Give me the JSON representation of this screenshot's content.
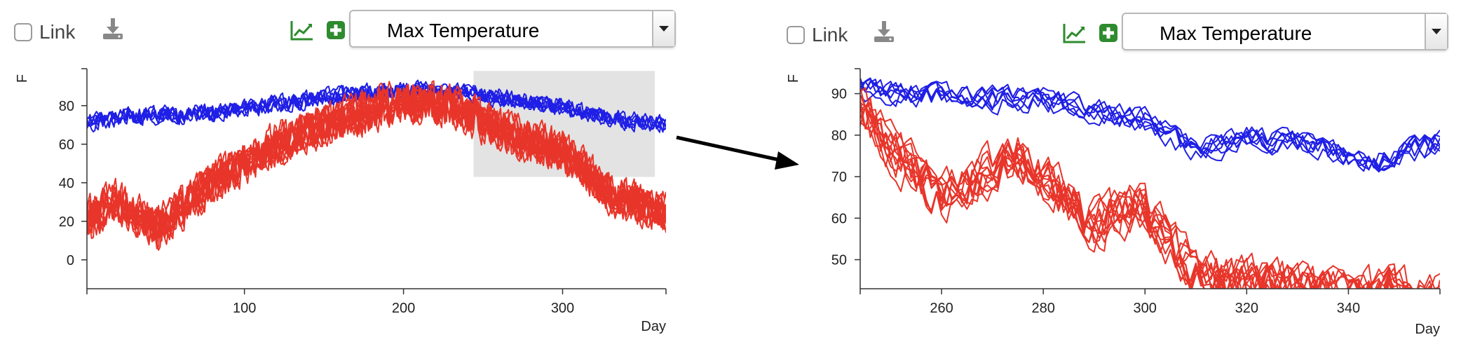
{
  "panels": [
    {
      "link_label": "Link",
      "select_value": "Max Temperature",
      "icons": [
        "checkbox-icon",
        "download-icon",
        "line-chart-icon",
        "add-icon",
        "chevron-down-icon"
      ],
      "accent_green": "#2e8b2e"
    },
    {
      "link_label": "Link",
      "select_value": "Max Temperature",
      "icons": [
        "checkbox-icon",
        "download-icon",
        "line-chart-icon",
        "add-icon",
        "chevron-down-icon"
      ],
      "accent_green": "#2e8b2e"
    }
  ],
  "chart_data": [
    {
      "type": "line",
      "title": "",
      "xlabel": "Day",
      "ylabel": "F",
      "xlim": [
        1,
        365
      ],
      "ylim": [
        -15,
        97
      ],
      "xticks": [
        100,
        200,
        300
      ],
      "yticks": [
        0,
        20,
        40,
        60,
        80
      ],
      "grid": false,
      "brush_selection": {
        "x": [
          244,
          358
        ],
        "y": [
          43,
          98
        ]
      },
      "groups": [
        {
          "color": "#1f1fe6",
          "count": 6,
          "knots_x": [
            1,
            30,
            60,
            100,
            140,
            180,
            210,
            240,
            270,
            300,
            330,
            365
          ],
          "knots_y": [
            72,
            76,
            76,
            79,
            84,
            88,
            89,
            87,
            84,
            80,
            74,
            71
          ],
          "amp": 10
        },
        {
          "color": "#e8352a",
          "count": 12,
          "knots_x": [
            1,
            20,
            45,
            80,
            120,
            160,
            200,
            230,
            250,
            270,
            300,
            330,
            365
          ],
          "knots_y": [
            22,
            32,
            18,
            42,
            62,
            74,
            84,
            82,
            72,
            66,
            58,
            36,
            26
          ],
          "amp": 24
        }
      ]
    },
    {
      "type": "line",
      "title": "",
      "xlabel": "Day",
      "ylabel": "F",
      "xlim": [
        244,
        358
      ],
      "ylim": [
        43,
        95
      ],
      "xticks": [
        260,
        280,
        300,
        320,
        340
      ],
      "yticks": [
        50,
        60,
        70,
        80,
        90
      ],
      "grid": false,
      "groups": [
        {
          "color": "#1f1fe6",
          "count": 7,
          "knots_x": [
            244,
            260,
            280,
            300,
            310,
            320,
            330,
            345,
            358
          ],
          "knots_y": [
            91,
            89,
            88,
            83,
            76,
            79,
            78,
            73,
            78
          ],
          "amp": 7
        },
        {
          "color": "#e8352a",
          "count": 12,
          "knots_x": [
            244,
            250,
            260,
            275,
            290,
            300,
            310,
            320,
            335,
            358
          ],
          "knots_y": [
            86,
            76,
            64,
            74,
            58,
            62,
            45,
            44,
            41,
            40
          ],
          "amp": 14
        }
      ]
    }
  ]
}
